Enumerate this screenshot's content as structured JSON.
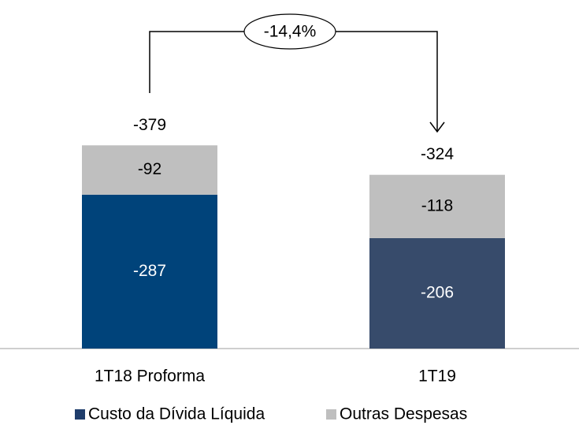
{
  "chart_data": {
    "type": "stacked_bar",
    "categories": [
      "1T18 Proforma",
      "1T19"
    ],
    "series": [
      {
        "name": "Custo da Dívida Líquida",
        "color": "#1f3d6b",
        "colors": [
          "#00437a",
          "#374b6b"
        ],
        "values": [
          -287,
          -206
        ]
      },
      {
        "name": "Outras Despesas",
        "color": "#bfbfbf",
        "values": [
          -92,
          -118
        ]
      }
    ],
    "totals": [
      -379,
      -324
    ],
    "annotation": "-14,4%",
    "ylim": [
      0,
      -650
    ]
  }
}
